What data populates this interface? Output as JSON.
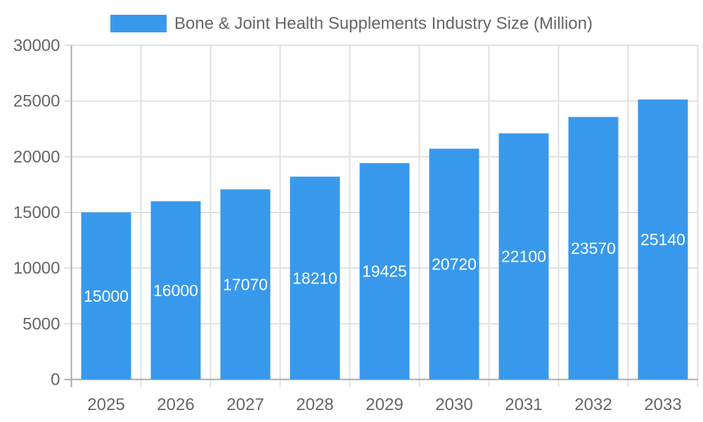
{
  "legend": {
    "label": "Bone & Joint Health Supplements Industry Size (Million)",
    "position": "top"
  },
  "colors": {
    "bar": "#3899EC",
    "grid": "#E0E0E0",
    "axis_line": "#ABABAB",
    "axis_text": "#666666",
    "value_label": "#FFFFFF",
    "background": "#FFFFFF"
  },
  "chart_data": {
    "type": "bar",
    "title": "Bone & Joint Health Supplements Industry Size (Million)",
    "categories": [
      "2025",
      "2026",
      "2027",
      "2028",
      "2029",
      "2030",
      "2031",
      "2032",
      "2033"
    ],
    "values": [
      15000,
      16000,
      17070,
      18210,
      19425,
      20720,
      22100,
      23570,
      25140
    ],
    "xlabel": "",
    "ylabel": "",
    "ylim": [
      0,
      30000
    ],
    "yticks": [
      0,
      5000,
      10000,
      15000,
      20000,
      25000,
      30000
    ],
    "grid": true,
    "legend_position": "top",
    "value_labels": "inside-center"
  }
}
